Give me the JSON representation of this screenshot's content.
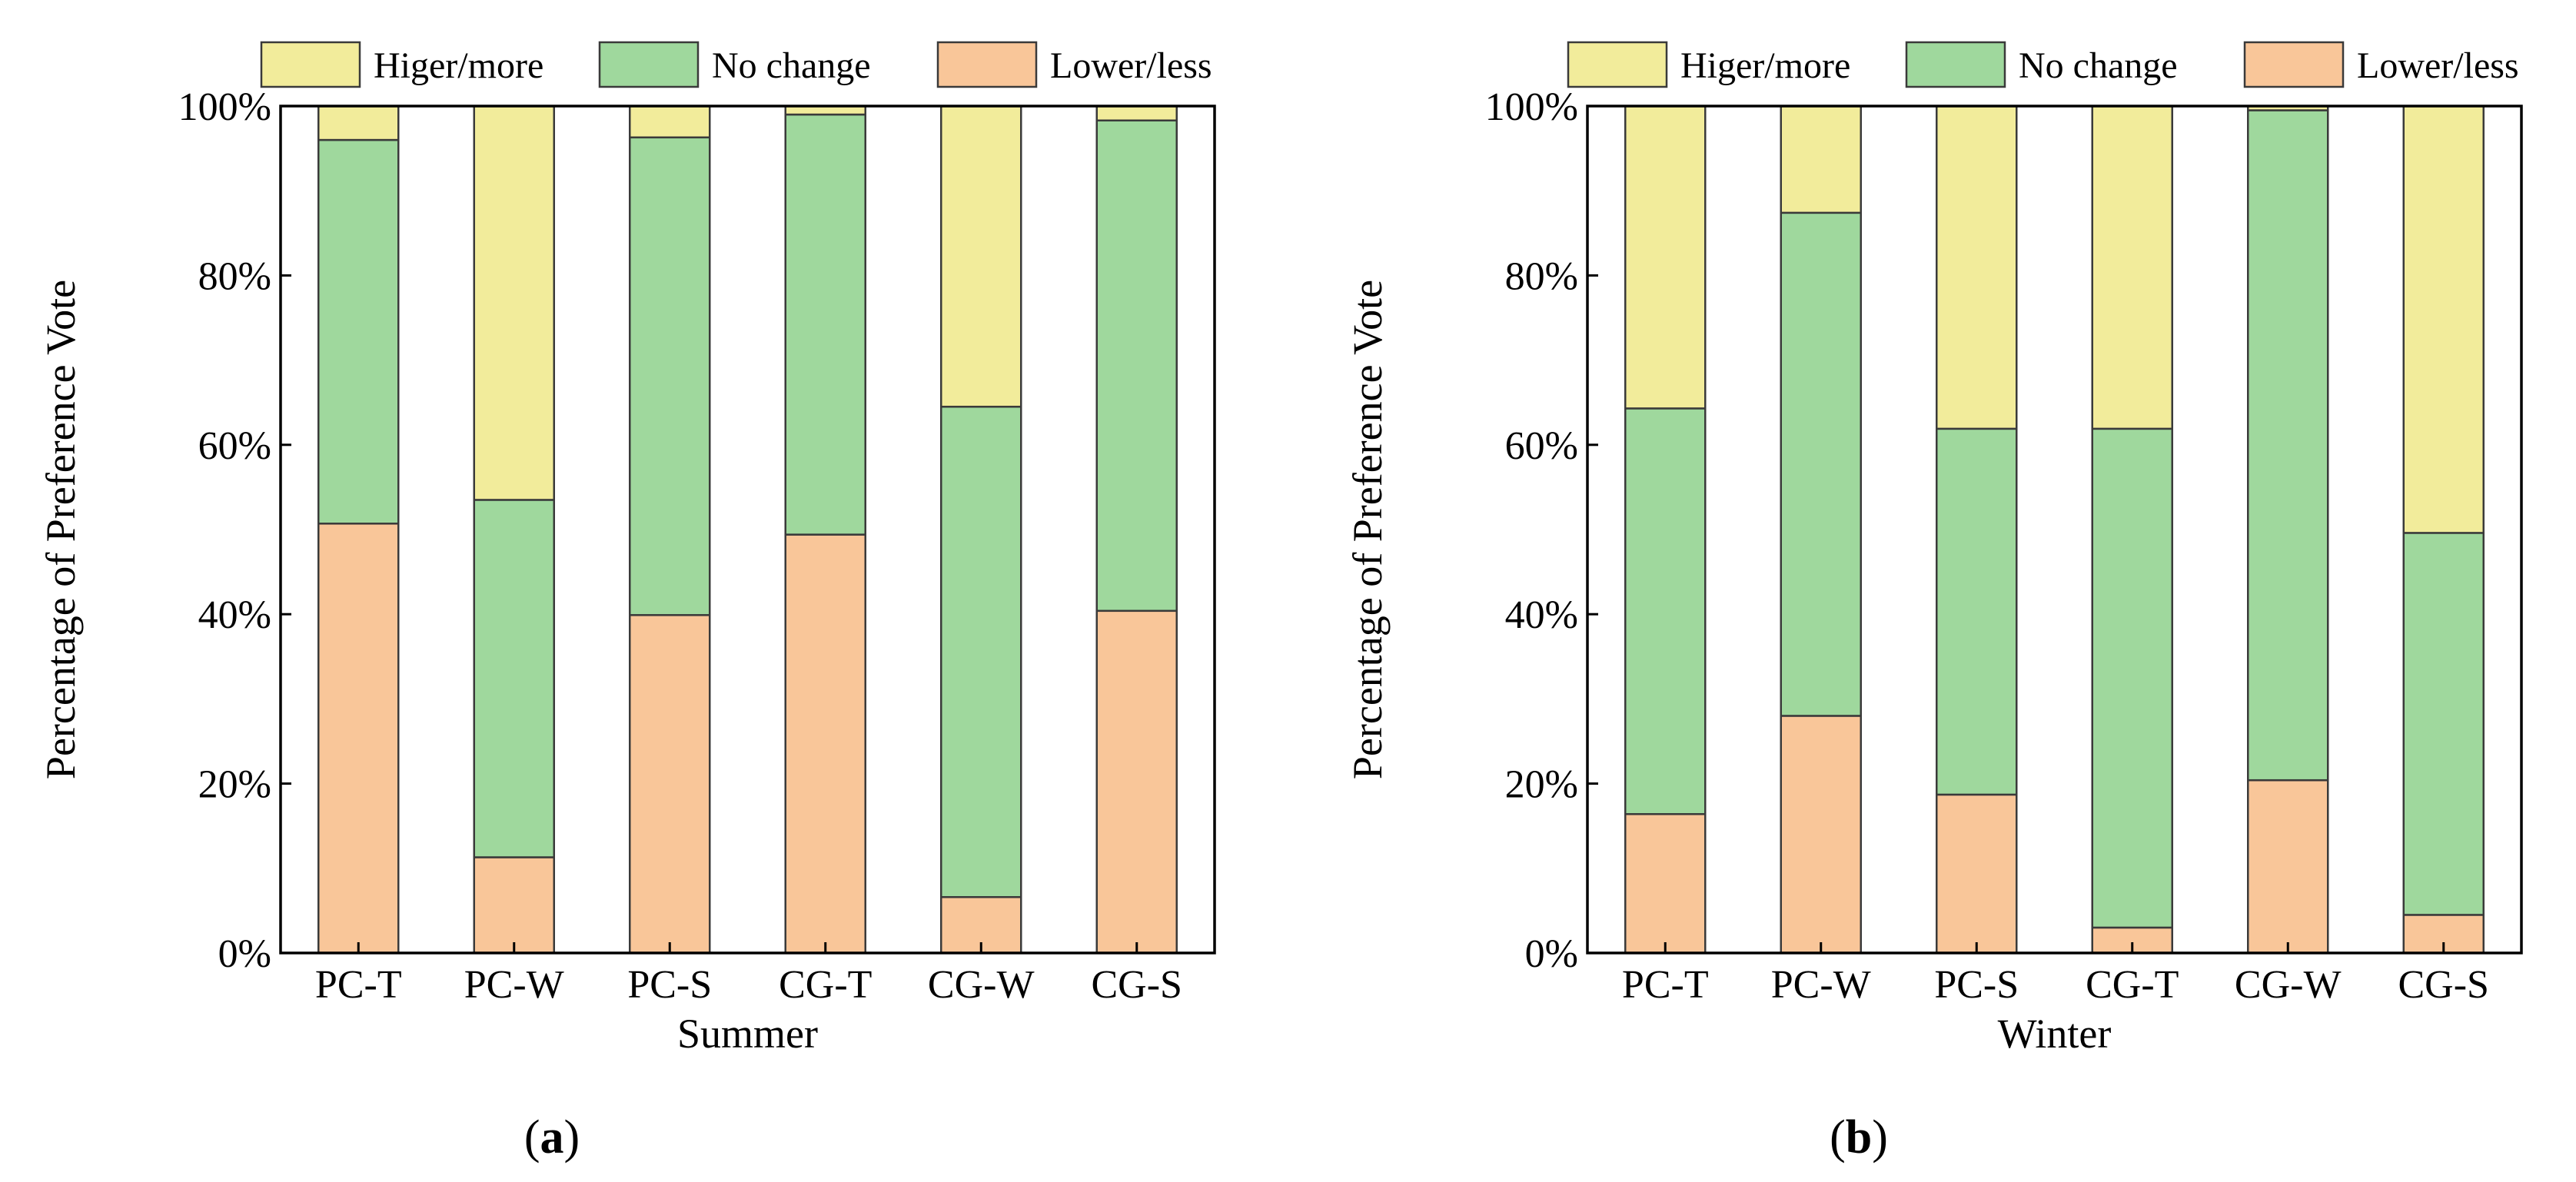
{
  "legend": [
    {
      "key": "higher",
      "label": "Higer/more",
      "color": "#f2ec9b"
    },
    {
      "key": "nochange",
      "label": "No change",
      "color": "#9fd89d"
    },
    {
      "key": "lower",
      "label": "Lower/less",
      "color": "#f9c699"
    }
  ],
  "chart_data": [
    {
      "type": "bar",
      "stacked": true,
      "panel_label_parts": [
        "(",
        "a",
        ")"
      ],
      "title": "",
      "xlabel": "Summer",
      "ylabel": "Percentage of Preference Vote",
      "ylim": [
        0,
        100
      ],
      "yticks": [
        "0%",
        "20%",
        "40%",
        "60%",
        "80%",
        "100%"
      ],
      "categories": [
        "PC-T",
        "PC-W",
        "PC-S",
        "CG-T",
        "CG-W",
        "CG-S"
      ],
      "legend_position": "top",
      "series": [
        {
          "name": "Lower/less",
          "values": [
            50.7,
            11.3,
            39.9,
            49.4,
            6.6,
            40.4
          ]
        },
        {
          "name": "No change",
          "values": [
            45.3,
            42.2,
            56.4,
            49.6,
            57.9,
            57.9
          ]
        },
        {
          "name": "Higer/more",
          "values": [
            4.0,
            46.5,
            3.7,
            1.0,
            35.5,
            1.7
          ]
        }
      ]
    },
    {
      "type": "bar",
      "stacked": true,
      "panel_label_parts": [
        "(",
        "b",
        ")"
      ],
      "title": "",
      "xlabel": "Winter",
      "ylabel": "Percentage of Preference Vote",
      "ylim": [
        0,
        100
      ],
      "yticks": [
        "0%",
        "20%",
        "40%",
        "60%",
        "80%",
        "100%"
      ],
      "categories": [
        "PC-T",
        "PC-W",
        "PC-S",
        "CG-T",
        "CG-W",
        "CG-S"
      ],
      "legend_position": "top",
      "series": [
        {
          "name": "Lower/less",
          "values": [
            16.4,
            28.0,
            18.7,
            3.0,
            20.4,
            4.5
          ]
        },
        {
          "name": "No change",
          "values": [
            47.9,
            59.4,
            43.2,
            58.9,
            79.1,
            45.1
          ]
        },
        {
          "name": "Higer/more",
          "values": [
            35.7,
            12.6,
            38.1,
            38.1,
            0.5,
            50.4
          ]
        }
      ]
    }
  ]
}
